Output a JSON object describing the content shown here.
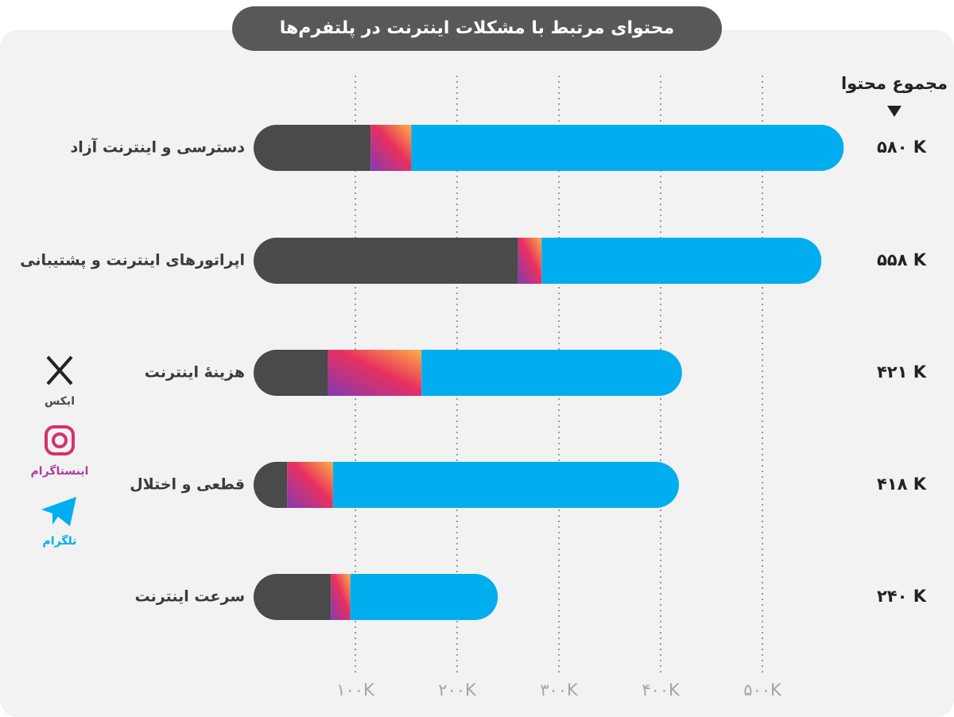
{
  "chart_data": {
    "type": "stacked-bar-horizontal",
    "title": "محتوای مرتبط با مشکلات اینترنت در پلتفرم‌ها",
    "totals_header": "مجموع محتوا",
    "categories": [
      "دسترسی و اینترنت آزاد",
      "اپراتورهای اینترنت و پشتیبانی",
      "هزینۀ اینترنت",
      "قطعی و اختلال",
      "سرعت اینترنت"
    ],
    "series": [
      {
        "name": "ایکس",
        "color": "#4a4a4a",
        "values": [
          115000,
          260000,
          73000,
          33000,
          76000
        ]
      },
      {
        "name": "اینستاگرام",
        "color": "#e8305f",
        "values": [
          40000,
          23000,
          92000,
          45000,
          19000
        ]
      },
      {
        "name": "تلگرام",
        "color": "#00aeef",
        "values": [
          425000,
          275000,
          256000,
          340000,
          145000
        ]
      }
    ],
    "totals": [
      {
        "value": 580000,
        "label": "۵۸۰ K"
      },
      {
        "value": 558000,
        "label": "۵۵۸ K"
      },
      {
        "value": 421000,
        "label": "۴۲۱ K"
      },
      {
        "value": 418000,
        "label": "۴۱۸ K"
      },
      {
        "value": 240000,
        "label": "۲۴۰ K"
      }
    ],
    "xlim": [
      0,
      600000
    ],
    "xticks": [
      {
        "value": 100000,
        "label": "۱۰۰K"
      },
      {
        "value": 200000,
        "label": "۲۰۰K"
      },
      {
        "value": 300000,
        "label": "۳۰۰K"
      },
      {
        "value": 400000,
        "label": "۴۰۰K"
      },
      {
        "value": 500000,
        "label": "۵۰۰K"
      }
    ],
    "grid": true
  }
}
